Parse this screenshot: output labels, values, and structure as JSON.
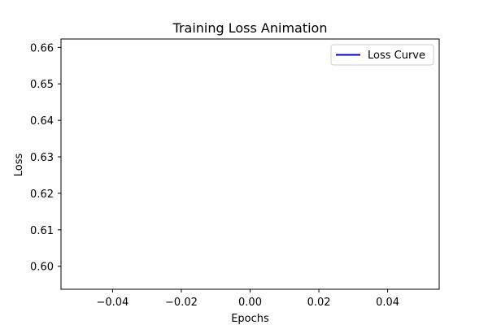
{
  "chart_data": {
    "type": "line",
    "title": "Training Loss Animation",
    "xlabel": "Epochs",
    "ylabel": "Loss",
    "xlim": [
      -0.055,
      0.055
    ],
    "ylim": [
      0.5937,
      0.6623
    ],
    "x_ticks": [
      -0.04,
      -0.02,
      0.0,
      0.02,
      0.04
    ],
    "x_tick_labels": [
      "−0.04",
      "−0.02",
      "0.00",
      "0.02",
      "0.04"
    ],
    "y_ticks": [
      0.6,
      0.61,
      0.62,
      0.63,
      0.64,
      0.65,
      0.66
    ],
    "y_tick_labels": [
      "0.60",
      "0.61",
      "0.62",
      "0.63",
      "0.64",
      "0.65",
      "0.66"
    ],
    "grid": false,
    "legend_position": "top-right",
    "series": [
      {
        "name": "Loss Curve",
        "color": "#0000cc",
        "x": [],
        "y": []
      }
    ]
  }
}
